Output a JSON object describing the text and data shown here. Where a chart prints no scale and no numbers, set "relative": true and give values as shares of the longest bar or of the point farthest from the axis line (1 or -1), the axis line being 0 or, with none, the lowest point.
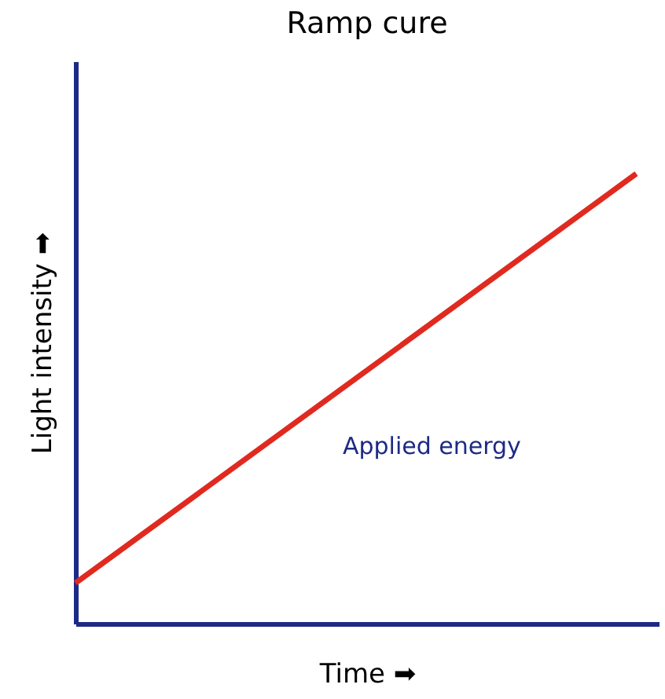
{
  "chart_data": {
    "type": "line",
    "title": "Ramp cure",
    "xlabel": "Time ➡",
    "ylabel": "Light intensity ➡",
    "categories": [
      null,
      null
    ],
    "series": [
      {
        "color": "#e02a1f",
        "values": [
          0.09,
          1
        ]
      }
    ],
    "relative": true,
    "grid": false,
    "marker": "none",
    "line_style": "solid",
    "annotations": [
      "Applied energy"
    ]
  }
}
